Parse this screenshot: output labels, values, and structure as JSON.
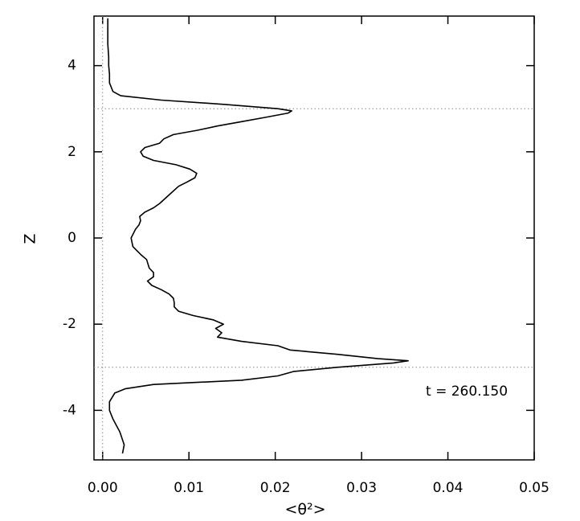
{
  "chart_data": {
    "type": "line",
    "x_label": "<θ²>",
    "y_label": "Z",
    "annotation": "t = 260.150",
    "xlim": [
      -0.001,
      0.05
    ],
    "ylim": [
      -5.15,
      5.15
    ],
    "xticks": [
      {
        "value": 0,
        "label": "0.00"
      },
      0.01,
      0.02,
      0.03,
      0.04,
      0.05
    ],
    "yticks": [
      -4,
      -2,
      0,
      2,
      4
    ],
    "reference_lines": {
      "x": [
        0
      ],
      "y": [
        -3,
        3
      ]
    },
    "color": "#000000",
    "x": [
      0.0023,
      0.0025,
      0.002,
      0.0012,
      0.0008,
      0.0008,
      0.0014,
      0.0026,
      0.0059,
      0.0161,
      0.0203,
      0.0221,
      0.0272,
      0.0337,
      0.0354,
      0.0319,
      0.0272,
      0.0217,
      0.0203,
      0.0161,
      0.0133,
      0.0138,
      0.0131,
      0.014,
      0.0128,
      0.0105,
      0.0088,
      0.0083,
      0.0083,
      0.0082,
      0.0077,
      0.0068,
      0.0057,
      0.0052,
      0.0059,
      0.0059,
      0.0054,
      0.0051,
      0.0045,
      0.0035,
      0.0033,
      0.0038,
      0.0042,
      0.0044,
      0.0043,
      0.0049,
      0.0059,
      0.0066,
      0.0077,
      0.0088,
      0.0098,
      0.0107,
      0.0109,
      0.0101,
      0.0085,
      0.0059,
      0.0047,
      0.0044,
      0.0049,
      0.0066,
      0.0071,
      0.0082,
      0.011,
      0.0133,
      0.0161,
      0.0189,
      0.0215,
      0.0219,
      0.0203,
      0.0142,
      0.0068,
      0.0021,
      0.0012,
      0.0008,
      0.0008,
      0.0007,
      0.0007,
      0.0006,
      0.0006
    ],
    "y": [
      -5.0,
      -4.8,
      -4.5,
      -4.2,
      -4.0,
      -3.8,
      -3.6,
      -3.5,
      -3.4,
      -3.3,
      -3.2,
      -3.1,
      -3.0,
      -2.9,
      -2.85,
      -2.8,
      -2.7,
      -2.6,
      -2.5,
      -2.4,
      -2.3,
      -2.2,
      -2.1,
      -2.0,
      -1.9,
      -1.8,
      -1.7,
      -1.6,
      -1.5,
      -1.4,
      -1.3,
      -1.2,
      -1.1,
      -1.0,
      -0.9,
      -0.8,
      -0.7,
      -0.5,
      -0.4,
      -0.2,
      0.0,
      0.2,
      0.3,
      0.4,
      0.5,
      0.6,
      0.7,
      0.8,
      1.0,
      1.2,
      1.3,
      1.4,
      1.5,
      1.6,
      1.7,
      1.8,
      1.9,
      2.0,
      2.1,
      2.2,
      2.3,
      2.4,
      2.5,
      2.6,
      2.7,
      2.8,
      2.9,
      2.95,
      3.0,
      3.1,
      3.2,
      3.3,
      3.4,
      3.6,
      3.8,
      4.0,
      4.2,
      4.5,
      5.1
    ]
  }
}
